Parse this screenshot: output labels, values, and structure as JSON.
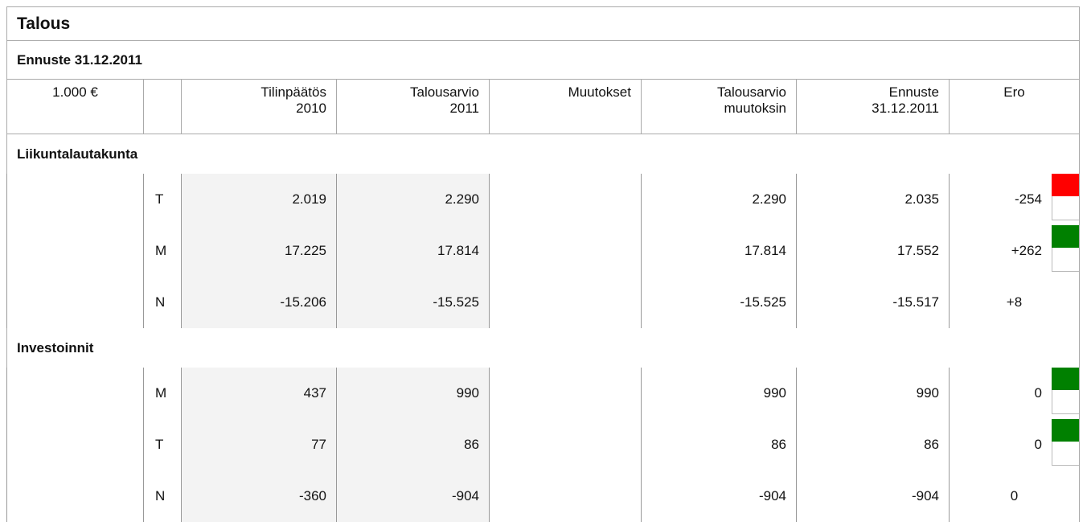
{
  "title": "Talous",
  "subtitle": "Ennuste 31.12.2011",
  "table": {
    "unit": "1.000 €",
    "columns": [
      [
        "Tilinpäätös",
        "2010"
      ],
      [
        "Talousarvio",
        "2011"
      ],
      [
        "Muutokset"
      ],
      [
        "Talousarvio",
        "muutoksin"
      ],
      [
        "Ennuste",
        "31.12.2011"
      ],
      [
        "Ero"
      ]
    ],
    "sections": [
      {
        "name": "Liikuntalautakunta",
        "rows": [
          {
            "code": "T",
            "values": [
              "2.019",
              "2.290",
              "2.290",
              "2.035",
              "-254"
            ],
            "indicator": "#ff0000"
          },
          {
            "code": "M",
            "values": [
              "17.225",
              "17.814",
              "17.814",
              "17.552",
              "+262"
            ],
            "indicator": "#008000"
          },
          {
            "code": "N",
            "values": [
              "-15.206",
              "-15.525",
              "-15.525",
              "-15.517",
              "+8"
            ]
          }
        ]
      },
      {
        "name": "Investoinnit",
        "rows": [
          {
            "code": "M",
            "values": [
              "437",
              "990",
              "990",
              "990",
              "0"
            ],
            "indicator": "#008000"
          },
          {
            "code": "T",
            "values": [
              "77",
              "86",
              "86",
              "86",
              "0"
            ],
            "indicator": "#008000"
          },
          {
            "code": "N",
            "values": [
              "-360",
              "-904",
              "-904",
              "-904",
              "0"
            ]
          }
        ]
      }
    ]
  }
}
